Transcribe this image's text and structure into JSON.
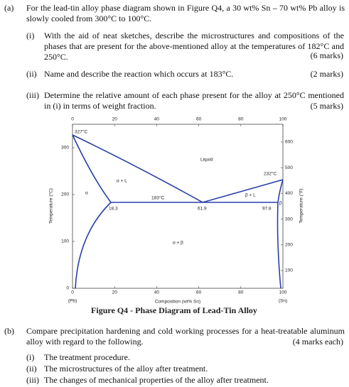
{
  "part_a": {
    "label": "(a)",
    "text": "For the lead-tin alloy phase diagram shown in Figure Q4, a 30 wt% Sn – 70 wt% Pb alloy is slowly cooled from 300°C to 100°C.",
    "questions": [
      {
        "label": "(i)",
        "text": "With the aid of neat sketches, describe the microstructures and compositions of the phases that are present for the above-mentioned alloy at the temperatures of 182°C and 250°C.",
        "marks": "(6 marks)"
      },
      {
        "label": "(ii)",
        "text": "Name and describe the reaction which occurs at 183°C.",
        "marks": "(2 marks)"
      },
      {
        "label": "(iii)",
        "text": "Determine the relative amount of each phase present for the alloy at 250°C mentioned in (i) in terms of weight fraction.",
        "marks": "(5 marks)"
      }
    ]
  },
  "figure": {
    "caption": "Figure Q4 - Phase Diagram of Lead-Tin Alloy",
    "x_label": "Composition (wt% Sn)",
    "y_label": "Temperature (°C)",
    "y2_label": "Temperature (°F)",
    "x_ticks": [
      "0",
      "20",
      "40",
      "60",
      "80",
      "100"
    ],
    "y_ticks": [
      "0",
      "100",
      "200",
      "300"
    ],
    "y2_ticks": [
      "100",
      "200",
      "300",
      "400",
      "500",
      "600"
    ],
    "x_end_labels": [
      "(Pb)",
      "(Sn)"
    ],
    "annotations": [
      "327°C",
      "Liquid",
      "232°C",
      "α + L",
      "183°C",
      "β + L",
      "α",
      "18.3",
      "61.9",
      "97.8",
      "β",
      "α + β"
    ]
  },
  "part_b": {
    "label": "(b)",
    "text": "Compare precipitation hardening and cold working processes for a heat-treatable aluminum alloy with regard to the following.",
    "marks": "(4 marks each)",
    "items": [
      {
        "label": "(i)",
        "text": "The treatment procedure."
      },
      {
        "label": "(ii)",
        "text": "The microstructures of the alloy after treatment."
      },
      {
        "label": "(iii)",
        "text": "The changes of mechanical properties of the alloy after treatment."
      }
    ]
  }
}
